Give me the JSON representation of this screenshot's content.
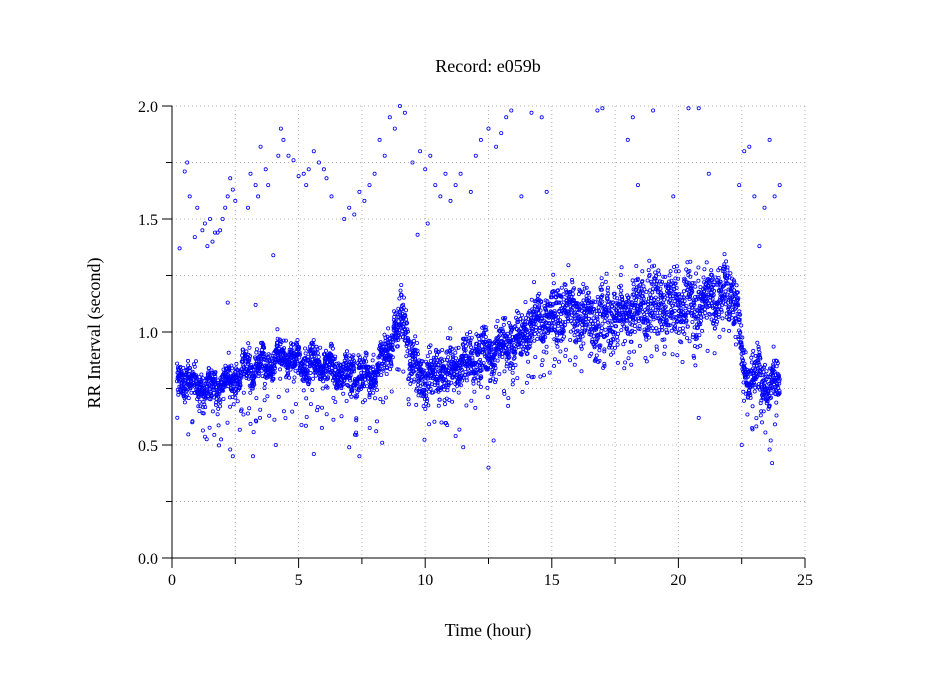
{
  "chart_data": {
    "type": "scatter",
    "title": "Record:  e059b",
    "xlabel": "Time (hour)",
    "ylabel": "RR Interval (second)",
    "xlim": [
      0,
      25
    ],
    "ylim": [
      0,
      2
    ],
    "xticks": [
      "0",
      "5",
      "10",
      "15",
      "20",
      "25"
    ],
    "yticks": [
      "0.0",
      "0.5",
      "1.0",
      "1.5",
      "2.0"
    ],
    "grid": true,
    "legend": "none",
    "marker_color": "#0000ff",
    "series": [
      {
        "trend": [
          [
            0.2,
            0.78
          ],
          [
            0.5,
            0.8
          ],
          [
            0.8,
            0.78
          ],
          [
            1.2,
            0.76
          ],
          [
            1.6,
            0.75
          ],
          [
            2.0,
            0.77
          ],
          [
            2.4,
            0.8
          ],
          [
            2.8,
            0.83
          ],
          [
            3.2,
            0.85
          ],
          [
            3.6,
            0.86
          ],
          [
            4.0,
            0.88
          ],
          [
            4.4,
            0.89
          ],
          [
            4.8,
            0.87
          ],
          [
            5.2,
            0.86
          ],
          [
            5.6,
            0.86
          ],
          [
            6.0,
            0.85
          ],
          [
            6.4,
            0.83
          ],
          [
            6.8,
            0.82
          ],
          [
            7.2,
            0.81
          ],
          [
            7.6,
            0.8
          ],
          [
            8.0,
            0.82
          ],
          [
            8.4,
            0.9
          ],
          [
            8.8,
            1.0
          ],
          [
            9.2,
            1.07
          ],
          [
            9.4,
            0.88
          ],
          [
            9.8,
            0.8
          ],
          [
            10.2,
            0.8
          ],
          [
            10.6,
            0.82
          ],
          [
            11.0,
            0.84
          ],
          [
            11.5,
            0.86
          ],
          [
            12.0,
            0.89
          ],
          [
            12.5,
            0.91
          ],
          [
            13.0,
            0.94
          ],
          [
            13.5,
            0.97
          ],
          [
            14.0,
            1.01
          ],
          [
            14.5,
            1.04
          ],
          [
            15.0,
            1.07
          ],
          [
            15.5,
            1.1
          ],
          [
            16.0,
            1.08
          ],
          [
            16.5,
            1.06
          ],
          [
            17.0,
            1.05
          ],
          [
            17.5,
            1.07
          ],
          [
            18.0,
            1.1
          ],
          [
            18.5,
            1.12
          ],
          [
            19.0,
            1.12
          ],
          [
            19.5,
            1.12
          ],
          [
            20.0,
            1.12
          ],
          [
            20.5,
            1.12
          ],
          [
            21.0,
            1.14
          ],
          [
            21.5,
            1.16
          ],
          [
            22.0,
            1.18
          ],
          [
            22.3,
            1.15
          ],
          [
            22.6,
            0.8
          ],
          [
            23.0,
            0.82
          ],
          [
            23.5,
            0.79
          ],
          [
            24.0,
            0.76
          ]
        ],
        "spread": [
          [
            0.0,
            0.05
          ],
          [
            5.0,
            0.05
          ],
          [
            8.0,
            0.06
          ],
          [
            10.0,
            0.07
          ],
          [
            14.0,
            0.08
          ],
          [
            17.0,
            0.1
          ],
          [
            20.0,
            0.1
          ],
          [
            22.4,
            0.08
          ],
          [
            24.0,
            0.07
          ]
        ],
        "outliers": [
          [
            0.3,
            1.37
          ],
          [
            0.5,
            1.71
          ],
          [
            0.6,
            1.75
          ],
          [
            0.7,
            1.6
          ],
          [
            0.9,
            1.42
          ],
          [
            1.0,
            1.55
          ],
          [
            1.2,
            1.45
          ],
          [
            1.3,
            1.48
          ],
          [
            1.4,
            1.38
          ],
          [
            1.5,
            1.5
          ],
          [
            1.6,
            1.4
          ],
          [
            1.7,
            1.44
          ],
          [
            1.8,
            1.44
          ],
          [
            1.9,
            1.45
          ],
          [
            2.0,
            1.5
          ],
          [
            2.1,
            1.55
          ],
          [
            2.2,
            1.6
          ],
          [
            2.3,
            1.68
          ],
          [
            2.4,
            1.63
          ],
          [
            2.5,
            1.58
          ],
          [
            2.2,
            1.13
          ],
          [
            2.3,
            0.48
          ],
          [
            2.4,
            0.45
          ],
          [
            3.0,
            1.55
          ],
          [
            3.1,
            1.7
          ],
          [
            3.3,
            1.65
          ],
          [
            3.4,
            1.6
          ],
          [
            3.5,
            1.82
          ],
          [
            3.7,
            1.72
          ],
          [
            3.8,
            1.65
          ],
          [
            4.0,
            1.34
          ],
          [
            4.2,
            1.78
          ],
          [
            4.3,
            1.9
          ],
          [
            4.4,
            1.85
          ],
          [
            4.6,
            1.78
          ],
          [
            4.8,
            1.76
          ],
          [
            5.0,
            1.69
          ],
          [
            5.2,
            1.7
          ],
          [
            5.3,
            1.65
          ],
          [
            5.4,
            1.72
          ],
          [
            5.6,
            1.8
          ],
          [
            5.8,
            1.75
          ],
          [
            6.0,
            1.72
          ],
          [
            6.1,
            1.68
          ],
          [
            6.3,
            1.6
          ],
          [
            5.6,
            0.46
          ],
          [
            3.3,
            1.12
          ],
          [
            3.2,
            0.45
          ],
          [
            4.1,
            0.5
          ],
          [
            6.8,
            1.5
          ],
          [
            7.0,
            1.55
          ],
          [
            7.2,
            1.52
          ],
          [
            7.4,
            1.62
          ],
          [
            7.6,
            1.58
          ],
          [
            7.8,
            1.65
          ],
          [
            8.0,
            1.7
          ],
          [
            8.2,
            1.85
          ],
          [
            8.4,
            1.78
          ],
          [
            8.6,
            1.95
          ],
          [
            8.8,
            1.9
          ],
          [
            9.0,
            2.0
          ],
          [
            9.2,
            1.97
          ],
          [
            7.0,
            0.49
          ],
          [
            7.4,
            0.45
          ],
          [
            8.3,
            0.51
          ],
          [
            9.5,
            1.75
          ],
          [
            9.8,
            1.8
          ],
          [
            10.0,
            1.72
          ],
          [
            10.2,
            1.78
          ],
          [
            10.4,
            1.65
          ],
          [
            10.6,
            1.6
          ],
          [
            10.8,
            1.7
          ],
          [
            11.0,
            1.58
          ],
          [
            11.2,
            1.65
          ],
          [
            11.4,
            1.7
          ],
          [
            9.7,
            1.43
          ],
          [
            10.1,
            1.48
          ],
          [
            11.2,
            0.54
          ],
          [
            11.5,
            0.49
          ],
          [
            11.8,
            1.62
          ],
          [
            12.0,
            1.78
          ],
          [
            12.2,
            1.85
          ],
          [
            12.5,
            1.9
          ],
          [
            12.8,
            1.82
          ],
          [
            13.0,
            1.88
          ],
          [
            13.2,
            1.95
          ],
          [
            13.4,
            1.98
          ],
          [
            13.8,
            1.6
          ],
          [
            14.2,
            1.97
          ],
          [
            14.6,
            1.95
          ],
          [
            14.8,
            1.62
          ],
          [
            12.5,
            0.4
          ],
          [
            12.7,
            0.52
          ],
          [
            16.8,
            1.98
          ],
          [
            17.0,
            1.99
          ],
          [
            18.0,
            1.85
          ],
          [
            18.2,
            1.95
          ],
          [
            18.4,
            1.65
          ],
          [
            19.0,
            1.98
          ],
          [
            19.8,
            1.6
          ],
          [
            20.4,
            1.99
          ],
          [
            20.8,
            1.99
          ],
          [
            21.2,
            1.7
          ],
          [
            22.4,
            1.65
          ],
          [
            22.6,
            1.8
          ],
          [
            22.8,
            1.82
          ],
          [
            23.0,
            1.6
          ],
          [
            23.2,
            1.38
          ],
          [
            23.4,
            1.55
          ],
          [
            23.6,
            1.85
          ],
          [
            23.8,
            1.6
          ],
          [
            24.0,
            1.65
          ],
          [
            22.5,
            0.5
          ],
          [
            23.6,
            0.48
          ],
          [
            23.7,
            0.42
          ],
          [
            20.8,
            0.62
          ],
          [
            23.3,
            0.6
          ]
        ]
      }
    ]
  }
}
